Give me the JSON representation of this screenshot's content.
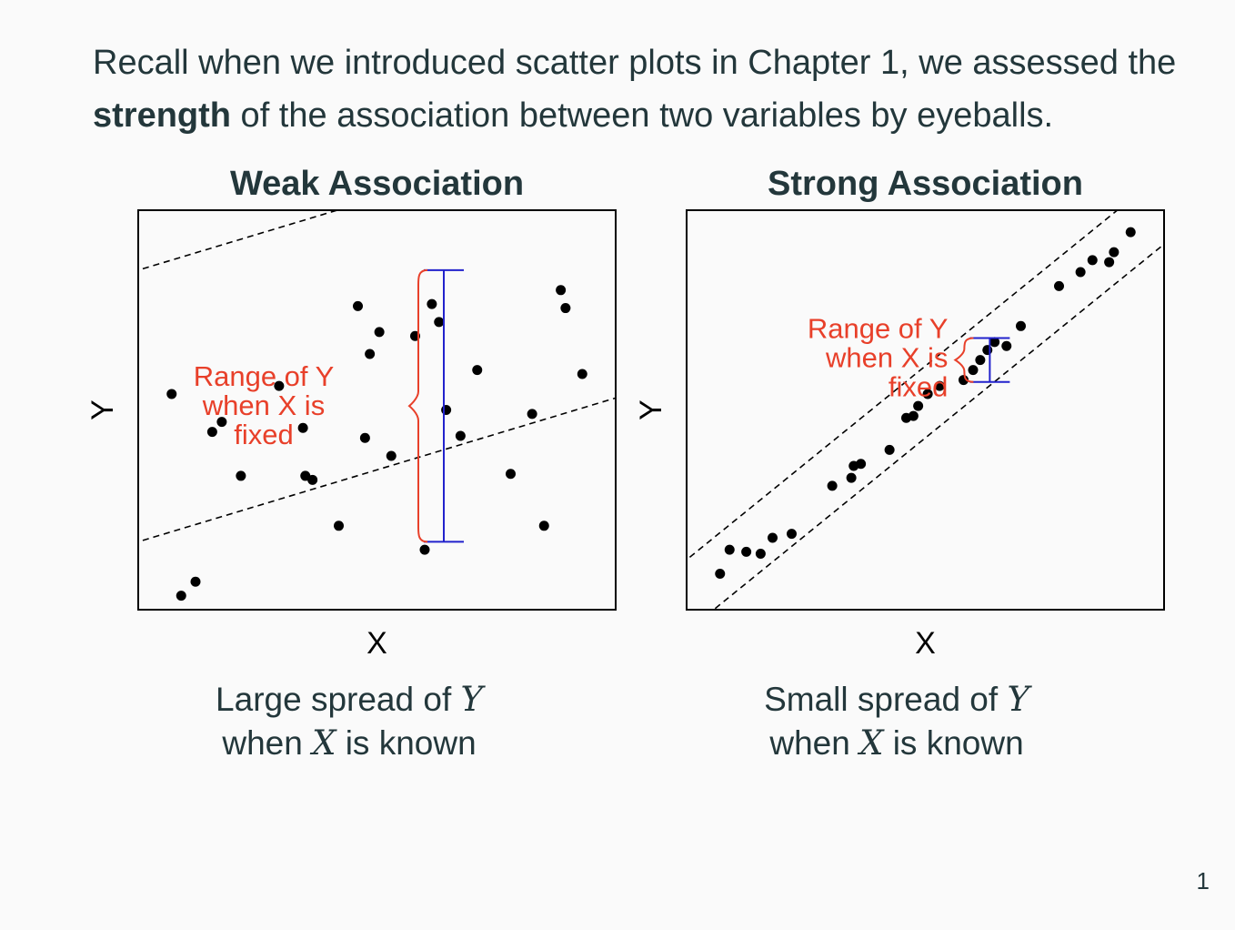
{
  "slide": {
    "intro_part1": "Recall when we introduced scatter plots in Chapter 1, we assessed the ",
    "intro_bold": "strength",
    "intro_part2": " of the association between two variables by eyeballs.",
    "page_number": "1",
    "captions": [
      {
        "pre": "Large spread of ",
        "var1": "Y",
        "mid": "when ",
        "var2": "X",
        "post": " is known"
      },
      {
        "pre": "Small spread of ",
        "var1": "Y",
        "mid": "when ",
        "var2": "X",
        "post": " is known"
      }
    ]
  },
  "chart_data": [
    {
      "type": "scatter",
      "title": "Weak Association",
      "xlabel": "X",
      "ylabel": "Y",
      "xlim": [
        0,
        10
      ],
      "ylim": [
        0,
        10
      ],
      "grid": false,
      "x": [
        0.7,
        0.9,
        1.2,
        1.55,
        1.75,
        2.15,
        2.95,
        3.45,
        3.5,
        3.65,
        4.2,
        4.6,
        4.75,
        4.85,
        5.05,
        5.3,
        5.8,
        6.0,
        6.15,
        6.3,
        6.45,
        6.75,
        7.1,
        7.8,
        8.25,
        8.5,
        8.85,
        8.95,
        9.3
      ],
      "y": [
        5.4,
        0.35,
        0.7,
        4.45,
        4.7,
        3.35,
        5.6,
        4.55,
        3.35,
        3.25,
        2.1,
        7.6,
        4.3,
        6.4,
        6.95,
        3.85,
        6.85,
        1.5,
        7.65,
        7.2,
        5.0,
        4.35,
        6.0,
        3.4,
        4.9,
        2.1,
        8.0,
        7.55,
        5.9
      ],
      "trend": {
        "slope": 0.36,
        "intercept": 5.1,
        "band": 3.4
      },
      "annotation": {
        "text_lines": [
          "Range of Y",
          "when X is",
          "fixed"
        ],
        "x": 6.4,
        "y_low": 1.7,
        "y_high": 8.5,
        "color": "#e8402a",
        "bar_color": "#2222cc"
      }
    },
    {
      "type": "scatter",
      "title": "Strong Association",
      "xlabel": "X",
      "ylabel": "Y",
      "xlim": [
        0,
        10
      ],
      "ylim": [
        0,
        10
      ],
      "grid": false,
      "x": [
        0.7,
        0.9,
        1.25,
        1.55,
        1.8,
        2.2,
        3.05,
        3.45,
        3.5,
        3.65,
        4.25,
        4.6,
        4.75,
        4.85,
        5.05,
        5.3,
        5.8,
        6.0,
        6.15,
        6.3,
        6.45,
        6.7,
        7.0,
        7.8,
        8.25,
        8.5,
        8.85,
        8.95,
        9.3
      ],
      "y": [
        0.9,
        1.5,
        1.45,
        1.4,
        1.8,
        1.9,
        3.1,
        3.3,
        3.6,
        3.65,
        4.0,
        4.8,
        4.85,
        5.1,
        5.4,
        5.6,
        5.75,
        6.0,
        6.25,
        6.5,
        6.7,
        6.6,
        7.1,
        8.1,
        8.45,
        8.75,
        8.7,
        8.95,
        9.45
      ],
      "trend": {
        "slope": 0.97,
        "intercept": 0.35,
        "band": 0.9
      },
      "annotation": {
        "text_lines": [
          "Range of Y",
          "when X is",
          "fixed"
        ],
        "x": 6.35,
        "y_low": 5.7,
        "y_high": 6.8,
        "color": "#e8402a",
        "bar_color": "#2222cc"
      }
    }
  ]
}
